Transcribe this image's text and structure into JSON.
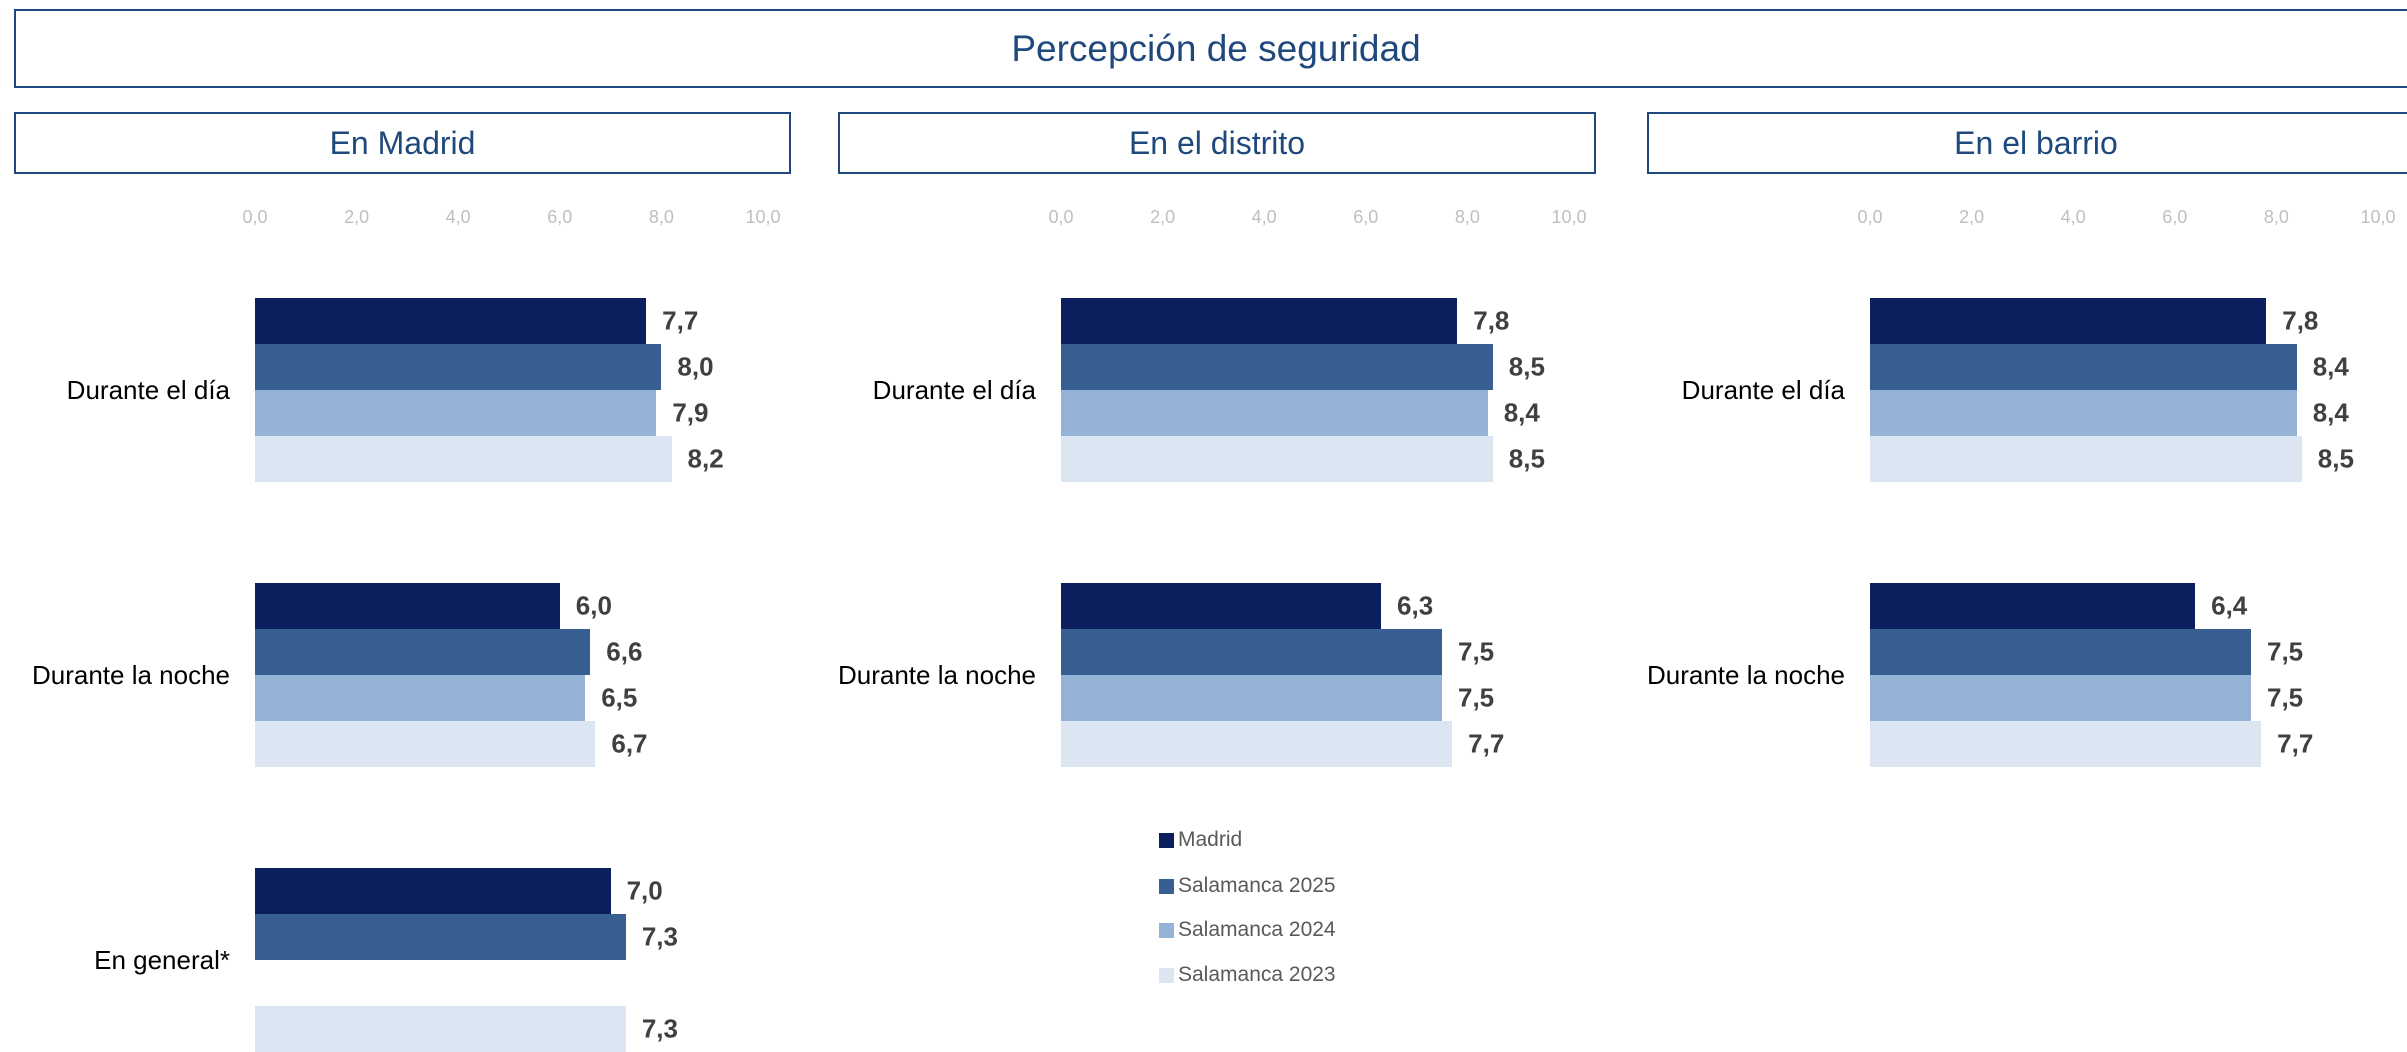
{
  "title": "Percepción de seguridad",
  "legend": [
    {
      "name": "Madrid",
      "color": "#0b1f5e"
    },
    {
      "name": "Salamanca 2025",
      "color": "#375f92"
    },
    {
      "name": "Salamanca 2024",
      "color": "#95b3d7"
    },
    {
      "name": "Salamanca 2023",
      "color": "#dce6f2"
    }
  ],
  "chart_data": [
    {
      "type": "hbar",
      "title": "En Madrid",
      "categories": [
        "Durante el día",
        "Durante la noche",
        "En general*"
      ],
      "xlim": [
        0,
        10
      ],
      "xticks": [
        {
          "value": 0,
          "label": "0,0"
        },
        {
          "value": 2,
          "label": "2,0"
        },
        {
          "value": 4,
          "label": "4,0"
        },
        {
          "value": 6,
          "label": "6,0"
        },
        {
          "value": 8,
          "label": "8,0"
        },
        {
          "value": 10,
          "label": "10,0"
        }
      ],
      "series": [
        {
          "values": [
            7.7,
            6.0,
            7.0
          ],
          "value_labels": [
            "7,7",
            "6,0",
            "7,0"
          ]
        },
        {
          "values": [
            8.0,
            6.6,
            7.3
          ],
          "value_labels": [
            "8,0",
            "6,6",
            "7,3"
          ]
        },
        {
          "values": [
            7.9,
            6.5,
            null
          ],
          "value_labels": [
            "7,9",
            "6,5",
            null
          ]
        },
        {
          "values": [
            8.2,
            6.7,
            7.3
          ],
          "value_labels": [
            "8,2",
            "6,7",
            "7,3"
          ]
        }
      ]
    },
    {
      "type": "hbar",
      "title": "En el distrito",
      "categories": [
        "Durante el día",
        "Durante la noche"
      ],
      "xlim": [
        0,
        10
      ],
      "xticks": [
        {
          "value": 0,
          "label": "0,0"
        },
        {
          "value": 2,
          "label": "2,0"
        },
        {
          "value": 4,
          "label": "4,0"
        },
        {
          "value": 6,
          "label": "6,0"
        },
        {
          "value": 8,
          "label": "8,0"
        },
        {
          "value": 10,
          "label": "10,0"
        }
      ],
      "series": [
        {
          "values": [
            7.8,
            6.3
          ],
          "value_labels": [
            "7,8",
            "6,3"
          ]
        },
        {
          "values": [
            8.5,
            7.5
          ],
          "value_labels": [
            "8,5",
            "7,5"
          ]
        },
        {
          "values": [
            8.4,
            7.5
          ],
          "value_labels": [
            "8,4",
            "7,5"
          ]
        },
        {
          "values": [
            8.5,
            7.7
          ],
          "value_labels": [
            "8,5",
            "7,7"
          ]
        }
      ]
    },
    {
      "type": "hbar",
      "title": "En el barrio",
      "categories": [
        "Durante el día",
        "Durante la noche"
      ],
      "xlim": [
        0,
        10
      ],
      "xticks": [
        {
          "value": 0,
          "label": "0,0"
        },
        {
          "value": 2,
          "label": "2,0"
        },
        {
          "value": 4,
          "label": "4,0"
        },
        {
          "value": 6,
          "label": "6,0"
        },
        {
          "value": 8,
          "label": "8,0"
        },
        {
          "value": 10,
          "label": "10,0"
        }
      ],
      "series": [
        {
          "values": [
            7.8,
            6.4
          ],
          "value_labels": [
            "7,8",
            "6,4"
          ]
        },
        {
          "values": [
            8.4,
            7.5
          ],
          "value_labels": [
            "8,4",
            "7,5"
          ]
        },
        {
          "values": [
            8.4,
            7.5
          ],
          "value_labels": [
            "8,4",
            "7,5"
          ]
        },
        {
          "values": [
            8.5,
            7.7
          ],
          "value_labels": [
            "8,5",
            "7,7"
          ]
        }
      ]
    }
  ]
}
